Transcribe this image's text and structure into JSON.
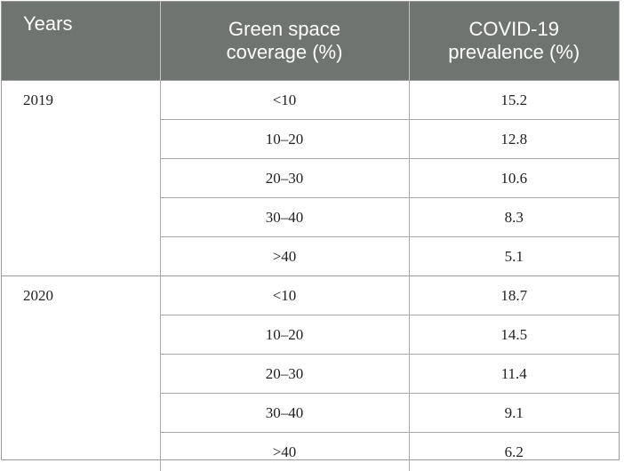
{
  "table": {
    "headers": {
      "years": "Years",
      "green_space_line1": "Green space",
      "green_space_line2": "coverage (%)",
      "covid_line1": "COVID-19",
      "covid_line2": "prevalence (%)"
    },
    "groups": [
      {
        "year": "2019",
        "rows": [
          {
            "coverage": "<10",
            "prevalence": "15.2"
          },
          {
            "coverage": "10–20",
            "prevalence": "12.8"
          },
          {
            "coverage": "20–30",
            "prevalence": "10.6"
          },
          {
            "coverage": "30–40",
            "prevalence": "8.3"
          },
          {
            "coverage": ">40",
            "prevalence": "5.1"
          }
        ]
      },
      {
        "year": "2020",
        "rows": [
          {
            "coverage": "<10",
            "prevalence": "18.7"
          },
          {
            "coverage": "10–20",
            "prevalence": "14.5"
          },
          {
            "coverage": "20–30",
            "prevalence": "11.4"
          },
          {
            "coverage": "30–40",
            "prevalence": "9.1"
          },
          {
            "coverage": ">40",
            "prevalence": "6.2"
          }
        ]
      }
    ]
  }
}
